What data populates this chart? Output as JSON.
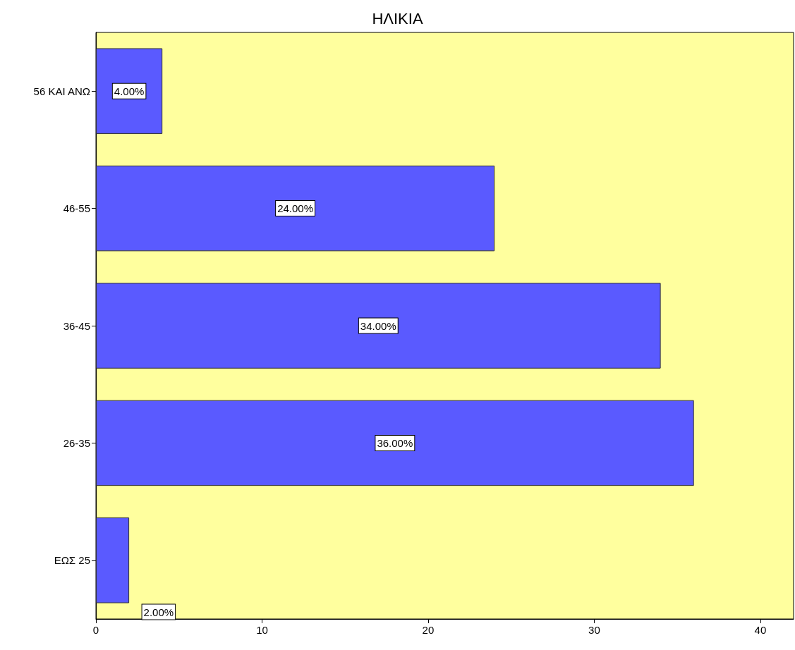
{
  "chart_data": {
    "type": "bar",
    "title": "ΗΛΙΚΙΑ",
    "orientation": "horizontal",
    "categories": [
      "56 ΚΑΙ ΑΝΩ",
      "46-55",
      "36-45",
      "26-35",
      "ΕΩΣ 25"
    ],
    "values": [
      4,
      24,
      34,
      36,
      2
    ],
    "value_labels": [
      "4.00%",
      "24.00%",
      "34.00%",
      "36.00%",
      "2.00%"
    ],
    "color": "#5a5aff",
    "xlim": [
      0,
      42
    ],
    "xticks": [
      0,
      10,
      20,
      30,
      40
    ],
    "grid": false
  }
}
